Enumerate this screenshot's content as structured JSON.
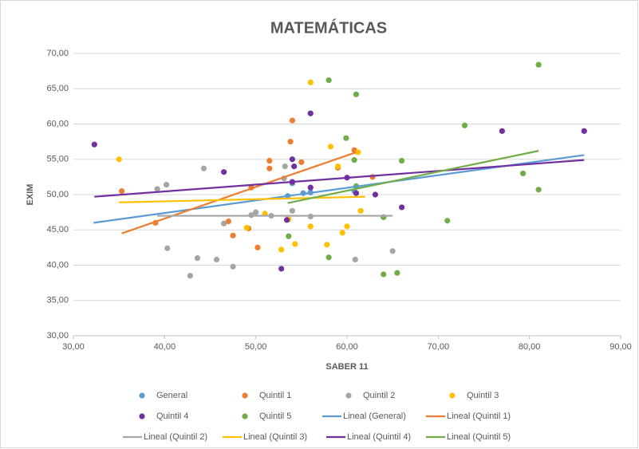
{
  "chart_data": {
    "type": "scatter",
    "title": "MATEMÁTICAS",
    "x_label": "SABER 11",
    "y_label": "EXIM",
    "xlim": [
      30,
      90
    ],
    "xticks": [
      {
        "value": 30,
        "label": "30,00"
      },
      {
        "value": 40,
        "label": "40,00"
      },
      {
        "value": 50,
        "label": "50,00"
      },
      {
        "value": 60,
        "label": "60,00"
      },
      {
        "value": 70,
        "label": "70,00"
      },
      {
        "value": 80,
        "label": "80,00"
      },
      {
        "value": 90,
        "label": "90,00"
      }
    ],
    "ylim": [
      30,
      70
    ],
    "yticks": [
      {
        "value": 30,
        "label": "30,00"
      },
      {
        "value": 35,
        "label": "35,00"
      },
      {
        "value": 40,
        "label": "40,00"
      },
      {
        "value": 45,
        "label": "45,00"
      },
      {
        "value": 50,
        "label": "50,00"
      },
      {
        "value": 55,
        "label": "55,00"
      },
      {
        "value": 60,
        "label": "60,00"
      },
      {
        "value": 65,
        "label": "65,00"
      },
      {
        "value": 70,
        "label": "70,00"
      }
    ],
    "grid": true,
    "series": [
      {
        "name": "General",
        "color": "#5b9bd5",
        "x": [
          53.5,
          55.2,
          56,
          60.8,
          54
        ],
        "values": [
          49.8,
          50.2,
          50.3,
          50.5,
          51.6
        ]
      },
      {
        "name": "Quintil 1",
        "color": "#ed7d31",
        "x": [
          35.3,
          39,
          47,
          47.5,
          49.5,
          50.2,
          51.5,
          51.5,
          54,
          53.8,
          55,
          53.5,
          60.8,
          62.8,
          59,
          49.2
        ],
        "values": [
          50.5,
          46,
          46.2,
          44.2,
          51,
          42.5,
          54.8,
          53.7,
          60.5,
          57.5,
          54.6,
          46.5,
          56.3,
          52.5,
          53.8,
          45.2
        ]
      },
      {
        "name": "Quintil 2",
        "color": "#a5a5a5",
        "x": [
          39.2,
          40.2,
          40.3,
          42.8,
          43.6,
          44.3,
          45.7,
          46.5,
          47.5,
          49.5,
          50,
          51.7,
          53.1,
          53.2,
          54,
          56,
          60.9,
          65,
          64
        ],
        "values": [
          50.8,
          51.4,
          42.4,
          38.5,
          41,
          53.7,
          40.8,
          45.9,
          39.8,
          47.1,
          47.5,
          47,
          52.3,
          54,
          47.7,
          46.9,
          40.8,
          42,
          46.8
        ]
      },
      {
        "name": "Quintil 3",
        "color": "#ffc000",
        "x": [
          35,
          49,
          51,
          52.8,
          53.6,
          54.3,
          56,
          56,
          57.8,
          58.2,
          59.5,
          60,
          61.2,
          61.5,
          59
        ],
        "values": [
          55,
          45.3,
          47.3,
          42.2,
          46.5,
          43,
          45.5,
          65.9,
          42.9,
          56.8,
          44.6,
          45.5,
          56,
          47.7,
          54
        ]
      },
      {
        "name": "Quintil 4",
        "color": "#7030a0",
        "x": [
          32.3,
          46.5,
          52.8,
          53.4,
          54,
          54.2,
          54,
          56,
          56,
          60,
          61,
          63.1,
          66,
          77,
          86
        ],
        "values": [
          57.1,
          53.2,
          39.5,
          46.4,
          55,
          54,
          51.8,
          61.5,
          51,
          52.4,
          50.2,
          50,
          48.2,
          59,
          59
        ]
      },
      {
        "name": "Quintil 5",
        "color": "#70ad47",
        "x": [
          53.6,
          58,
          58,
          59.9,
          60.8,
          61,
          61,
          64,
          64,
          65.5,
          66,
          71,
          72.9,
          79.3,
          81,
          81
        ],
        "values": [
          44.1,
          66.2,
          41.1,
          58,
          54.9,
          64.2,
          51.2,
          38.7,
          46.8,
          38.9,
          54.8,
          46.3,
          59.8,
          53,
          68.4,
          50.7
        ]
      }
    ],
    "trendlines": [
      {
        "name": "Lineal (General)",
        "color": "#5b9bd5",
        "x": [
          32.2,
          86
        ],
        "values": [
          46,
          55.6
        ]
      },
      {
        "name": "Lineal (Quintil 1)",
        "color": "#ed7d31",
        "x": [
          35.3,
          61
        ],
        "values": [
          44.5,
          56
        ]
      },
      {
        "name": "Lineal (Quintil 2)",
        "color": "#a5a5a5",
        "x": [
          39.2,
          65
        ],
        "values": [
          47,
          47
        ]
      },
      {
        "name": "Lineal (Quintil 3)",
        "color": "#ffc000",
        "x": [
          35,
          62
        ],
        "values": [
          48.9,
          49.7
        ]
      },
      {
        "name": "Lineal (Quintil 4)",
        "color": "#7030a0",
        "x": [
          32.3,
          86
        ],
        "values": [
          49.7,
          54.9
        ]
      },
      {
        "name": "Lineal (Quintil 5)",
        "color": "#70ad47",
        "x": [
          53.5,
          81
        ],
        "values": [
          48.8,
          56.2
        ]
      }
    ]
  }
}
